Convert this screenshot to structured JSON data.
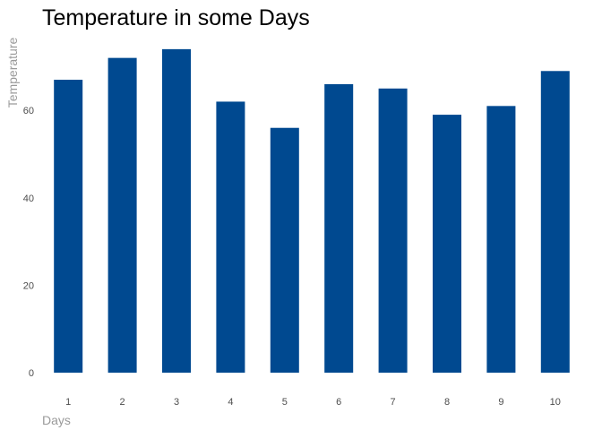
{
  "chart_data": {
    "type": "bar",
    "title": "Temperature in some Days",
    "xlabel": "Days",
    "ylabel": "Temperature",
    "categories": [
      "1",
      "2",
      "3",
      "4",
      "5",
      "6",
      "7",
      "8",
      "9",
      "10"
    ],
    "values": [
      67,
      72,
      74,
      62,
      56,
      66,
      65,
      59,
      61,
      69
    ],
    "yticks": [
      "0",
      "20",
      "40",
      "60"
    ],
    "ylim": [
      0,
      77
    ],
    "grid": false,
    "legend": "none",
    "bar_color": "#004990"
  }
}
